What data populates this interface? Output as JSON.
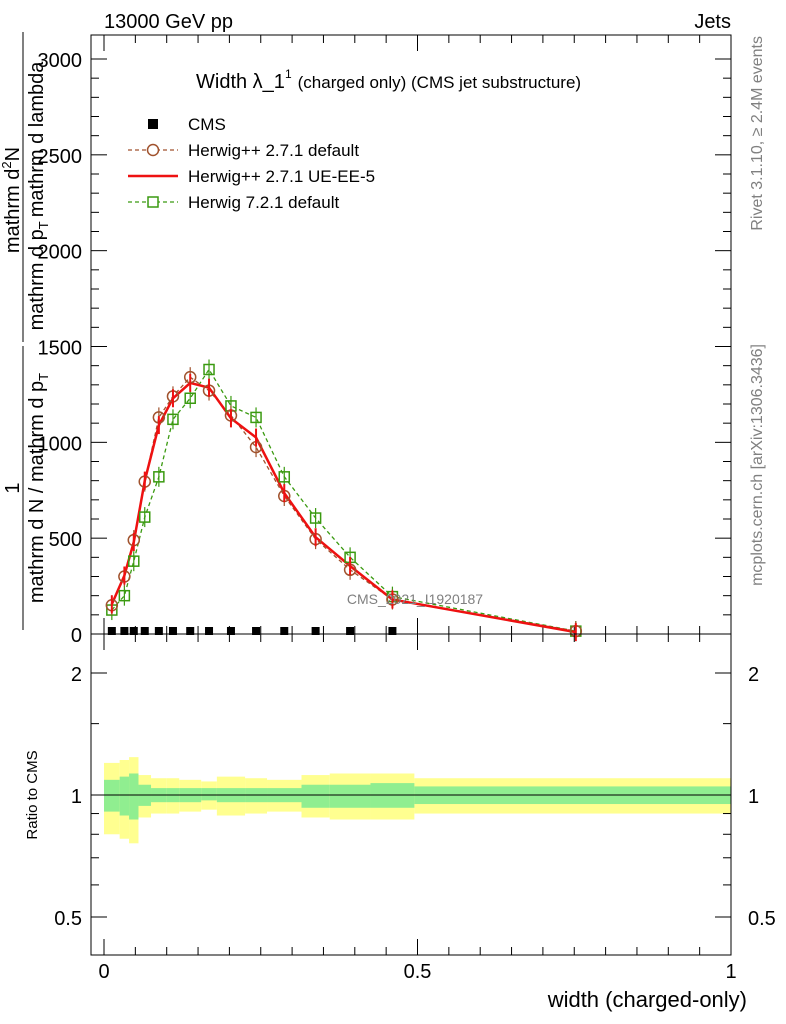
{
  "header": {
    "left": "13000 GeV pp",
    "right": "Jets"
  },
  "side_text": {
    "rivet": "Rivet 3.1.10, ≥ 2.4M events",
    "mcplots": "mcplots.cern.ch [arXiv:1306.3436]"
  },
  "chart_data": [
    {
      "type": "line",
      "title": "Width λ_1¹ (charged only) (CMS jet substructure)",
      "title_main": "Width λ_1",
      "title_sup": "1",
      "title_rest": "(charged only) (CMS jet substructure)",
      "ylabel": "1 / (mathrm d N / mathrm d p_T) · mathrm d²N / (mathrm d p_T mathrm d lambda)",
      "ylabel_numerator_1": "1",
      "ylabel_denominator_1": "mathrm d N / mathrm d p",
      "ylabel_numerator_2": "mathrm d",
      "ylabel_numerator_2_sup": "2",
      "ylabel_numerator_2_rest": "N",
      "ylabel_denominator_2": "mathrm d p",
      "ylabel_denominator_2_rest": "mathrm d lambda",
      "ylabel_sub": "T",
      "xlim": [
        0,
        1
      ],
      "ylim": [
        0,
        3100
      ],
      "yticks": [
        0,
        500,
        1000,
        1500,
        2000,
        2500,
        3000
      ],
      "ytick_labels": [
        "0",
        "500",
        "1000",
        "1500",
        "2000",
        "2500",
        "3000"
      ],
      "legend_position": "top-left",
      "watermark": "CMS_2021_I1920187",
      "series": [
        {
          "name": "CMS",
          "color": "#000000",
          "x": [
            0.0125,
            0.0325,
            0.0475,
            0.065,
            0.0875,
            0.11,
            0.1375,
            0.1675,
            0.2025,
            0.2425,
            0.2875,
            0.3375,
            0.3925,
            0.46
          ],
          "y": [
            5,
            5,
            5,
            5,
            5,
            5,
            5,
            5,
            5,
            5,
            5,
            5,
            5,
            5
          ]
        },
        {
          "name": "Herwig++ 2.7.1 default",
          "color": "#a0522d",
          "x": [
            0.0125,
            0.0325,
            0.0475,
            0.065,
            0.0875,
            0.11,
            0.1375,
            0.1675,
            0.2025,
            0.2425,
            0.2875,
            0.3375,
            0.3925,
            0.46,
            0.7525
          ],
          "y": [
            150,
            300,
            490,
            795,
            1130,
            1240,
            1340,
            1270,
            1140,
            975,
            720,
            495,
            335,
            180,
            15
          ]
        },
        {
          "name": "Herwig++ 2.7.1 UE-EE-5",
          "color": "#ee1111",
          "x": [
            0.0125,
            0.0325,
            0.0475,
            0.065,
            0.0875,
            0.11,
            0.1375,
            0.1675,
            0.2025,
            0.2425,
            0.2875,
            0.3375,
            0.3925,
            0.46,
            0.7525
          ],
          "y": [
            155,
            305,
            480,
            800,
            1090,
            1230,
            1310,
            1285,
            1125,
            1025,
            735,
            505,
            355,
            180,
            10
          ]
        },
        {
          "name": "Herwig 7.2.1 default",
          "color": "#3a9a10",
          "x": [
            0.0125,
            0.0325,
            0.0475,
            0.065,
            0.0875,
            0.11,
            0.1375,
            0.1675,
            0.2025,
            0.2425,
            0.2875,
            0.3375,
            0.3925,
            0.46,
            0.7525
          ],
          "y": [
            125,
            200,
            380,
            610,
            820,
            1120,
            1230,
            1380,
            1190,
            1130,
            820,
            605,
            400,
            195,
            15
          ]
        }
      ]
    },
    {
      "type": "area",
      "ylabel": "Ratio to CMS",
      "xlabel": "width (charged-only)",
      "xlim": [
        0,
        1
      ],
      "ylim": [
        0.32,
        2.3
      ],
      "xticks": [
        0,
        0.5,
        1
      ],
      "xtick_labels": [
        "0",
        "0.5",
        "1"
      ],
      "yticks": [
        0.5,
        1,
        2
      ],
      "ytick_labels": [
        "0.5",
        "1",
        "2"
      ],
      "reference_line": 1,
      "band_colors": {
        "inner": "#90ee90",
        "outer": "#ffff90"
      },
      "bin_edges": [
        0,
        0.025,
        0.04,
        0.055,
        0.075,
        0.1,
        0.12,
        0.155,
        0.18,
        0.225,
        0.26,
        0.315,
        0.36,
        0.425,
        0.495,
        1
      ],
      "inner_band_low": [
        0.91,
        0.89,
        0.87,
        0.94,
        0.96,
        0.96,
        0.96,
        0.97,
        0.96,
        0.96,
        0.96,
        0.93,
        0.93,
        0.93,
        0.95
      ],
      "inner_band_high": [
        1.09,
        1.11,
        1.13,
        1.06,
        1.04,
        1.04,
        1.04,
        1.04,
        1.04,
        1.04,
        1.04,
        1.06,
        1.06,
        1.07,
        1.05
      ],
      "outer_band_low": [
        0.8,
        0.78,
        0.76,
        0.88,
        0.9,
        0.9,
        0.91,
        0.92,
        0.89,
        0.9,
        0.91,
        0.88,
        0.87,
        0.87,
        0.9
      ],
      "outer_band_high": [
        1.2,
        1.22,
        1.24,
        1.12,
        1.1,
        1.1,
        1.09,
        1.08,
        1.11,
        1.1,
        1.09,
        1.12,
        1.13,
        1.13,
        1.1
      ]
    }
  ]
}
